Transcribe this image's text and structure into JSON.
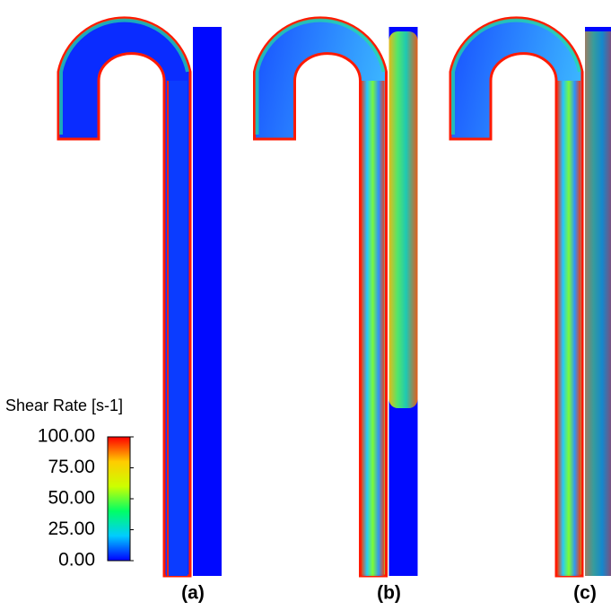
{
  "chart_data": {
    "type": "contour",
    "colorbar_title": "Shear Rate [s-1]",
    "clim": [
      0,
      100
    ],
    "colorbar_ticks": [
      {
        "value": 100,
        "label": "100.00"
      },
      {
        "value": 75,
        "label": "75.00"
      },
      {
        "value": 50,
        "label": "50.00"
      },
      {
        "value": 25,
        "label": "25.00"
      },
      {
        "value": 0,
        "label": "0.00"
      }
    ],
    "colormap": [
      "#0000ff",
      "#00ccff",
      "#00ff66",
      "#ccff00",
      "#ffcc00",
      "#ff0000"
    ],
    "panels": [
      "(a)",
      "(b)",
      "(c)"
    ]
  }
}
